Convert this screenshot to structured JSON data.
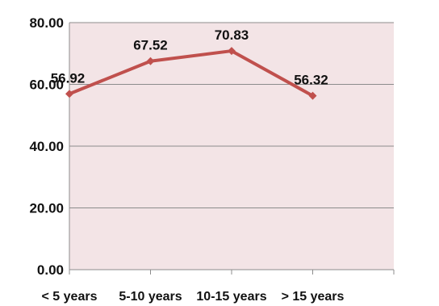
{
  "chart_data": {
    "type": "line",
    "title": "",
    "xlabel": "",
    "ylabel": "",
    "categories": [
      "< 5 years",
      "5-10 years",
      "10-15 years",
      "> 15 years"
    ],
    "series": [
      {
        "values": [
          56.92,
          67.52,
          70.83,
          56.32
        ]
      }
    ],
    "data_labels": [
      "56.92",
      "67.52",
      "70.83",
      "56.32"
    ],
    "y_ticks": [
      "0.00",
      "20.00",
      "40.00",
      "60.00",
      "80.00"
    ],
    "y_tick_values": [
      0,
      20,
      40,
      60,
      80
    ],
    "ylim": [
      0,
      80
    ],
    "grid": true,
    "legend": "none",
    "colors": {
      "plot_background": "#f3e4e6",
      "line": "#c0504d",
      "gridline": "#8c8c8c",
      "axis": "#8c8c8c"
    }
  }
}
